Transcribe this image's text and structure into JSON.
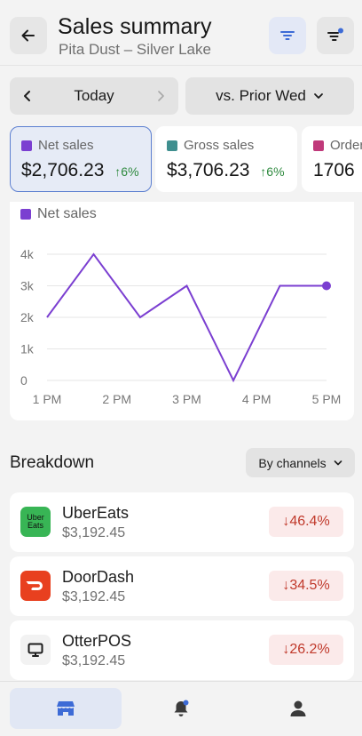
{
  "header": {
    "title": "Sales summary",
    "subtitle": "Pita Dust – Silver Lake"
  },
  "date_selector": {
    "current": "Today",
    "comparison": "vs. Prior Wed"
  },
  "metrics": [
    {
      "label": "Net sales",
      "value": "$2,706.23",
      "change": "6%",
      "color": "#7b3fd1",
      "active": true
    },
    {
      "label": "Gross sales",
      "value": "$3,706.23",
      "change": "6%",
      "color": "#3f8f8f",
      "active": false
    },
    {
      "label": "Orders",
      "value": "1706",
      "change": "",
      "color": "#c0397a",
      "active": false
    }
  ],
  "chart_data": {
    "type": "line",
    "title": "",
    "legend": "Net sales",
    "series": [
      {
        "name": "Net sales",
        "color": "#7b3fd1",
        "x": [
          13.0,
          13.667,
          14.333,
          15.0,
          15.667,
          16.333,
          17.0
        ],
        "values": [
          2000,
          4000,
          2000,
          3000,
          0,
          3000,
          3000
        ]
      }
    ],
    "xticks": [
      "1 PM",
      "2 PM",
      "3 PM",
      "4 PM",
      "5 PM"
    ],
    "xtick_values": [
      13,
      14,
      15,
      16,
      17
    ],
    "yticks": [
      "0",
      "1k",
      "2k",
      "3k",
      "4k"
    ],
    "ytick_values": [
      0,
      1000,
      2000,
      3000,
      4000
    ],
    "ylim": [
      0,
      4000
    ],
    "xlim": [
      13,
      17
    ],
    "grid": true
  },
  "breakdown": {
    "title": "Breakdown",
    "filter_label": "By channels",
    "rows": [
      {
        "name": "UberEats",
        "amount": "$3,192.45",
        "change": "46.4%",
        "logo_line1": "Uber",
        "logo_line2": "Eats"
      },
      {
        "name": "DoorDash",
        "amount": "$3,192.45",
        "change": "34.5%"
      },
      {
        "name": "OtterPOS",
        "amount": "$3,192.45",
        "change": "26.2%"
      }
    ]
  },
  "icons": {
    "back": "arrow-left-icon",
    "filter": "filter-icon",
    "sort": "sort-icon",
    "home": "store-icon",
    "alerts": "bell-icon",
    "profile": "user-icon"
  }
}
